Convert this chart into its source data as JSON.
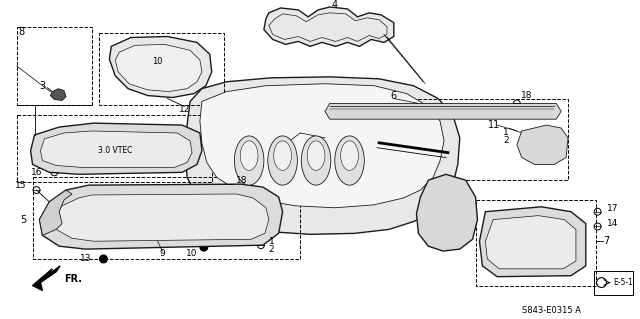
{
  "bg_color": "#ffffff",
  "line_color": "#1a1a1a",
  "fig_width": 6.4,
  "fig_height": 3.19,
  "dpi": 100,
  "diagram_code": "S843-E0315 A",
  "ref_code": "E-5-1",
  "gray_fill": "#d0d0d0",
  "mid_gray": "#b0b0b0"
}
